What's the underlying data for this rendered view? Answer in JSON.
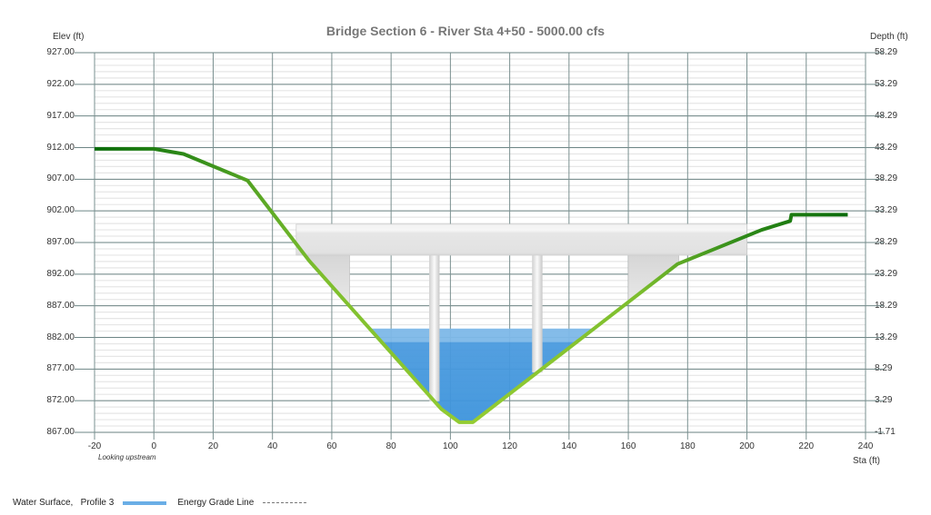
{
  "chart_data": {
    "type": "area",
    "title": "Bridge Section 6 - River Sta 4+50 - 5000.00 cfs",
    "xlabel": "Sta (ft)",
    "ylabel": "Elev (ft)",
    "y2label": "Depth (ft)",
    "annotation": "Looking upstream",
    "xlim": [
      -20,
      240
    ],
    "ylim": [
      867,
      927
    ],
    "x_ticks": [
      "-20",
      "0",
      "20",
      "40",
      "60",
      "80",
      "100",
      "120",
      "140",
      "160",
      "180",
      "200",
      "220",
      "240"
    ],
    "y_ticks": [
      "927.00",
      "922.00",
      "917.00",
      "912.00",
      "907.00",
      "902.00",
      "897.00",
      "892.00",
      "887.00",
      "882.00",
      "877.00",
      "872.00",
      "867.00"
    ],
    "y2_ticks": [
      "58.29",
      "53.29",
      "48.29",
      "43.29",
      "38.29",
      "33.29",
      "28.29",
      "23.29",
      "18.29",
      "13.29",
      "8.29",
      "3.29",
      "-1.71"
    ],
    "grid": true,
    "legend_position": "bottom-left",
    "series": [
      {
        "name": "Ground",
        "type": "line",
        "color": "#8cc63f",
        "x": [
          -20,
          0,
          10,
          31.6,
          52.4,
          96.9,
          103,
          107.6,
          176.6,
          205,
          214.6,
          215,
          234
        ],
        "y": [
          911.8,
          911.8,
          911.0,
          906.8,
          894.1,
          870.7,
          868.6,
          868.6,
          893.6,
          899.0,
          900.4,
          901.4,
          901.4
        ]
      },
      {
        "name": "Water Surface, Profile 3",
        "type": "area",
        "color": "#3d94dc",
        "elevation": 883.4
      },
      {
        "name": "Energy Grade Line",
        "type": "line",
        "style": "dashed",
        "color": "#777777"
      },
      {
        "name": "Bridge Deck",
        "type": "area",
        "color": "#e4e4e4",
        "x": [
          48,
          200
        ],
        "high_chord": 899.9,
        "low_chord": 895.0
      },
      {
        "name": "Piers",
        "type": "bar",
        "color": "#e8e8e8",
        "x": [
          94.6,
          129.3
        ],
        "width_ft": 3.5
      }
    ]
  },
  "legend": {
    "water_surface": "Water Surface,   Profile 3",
    "energy_grade": "Energy Grade Line"
  }
}
